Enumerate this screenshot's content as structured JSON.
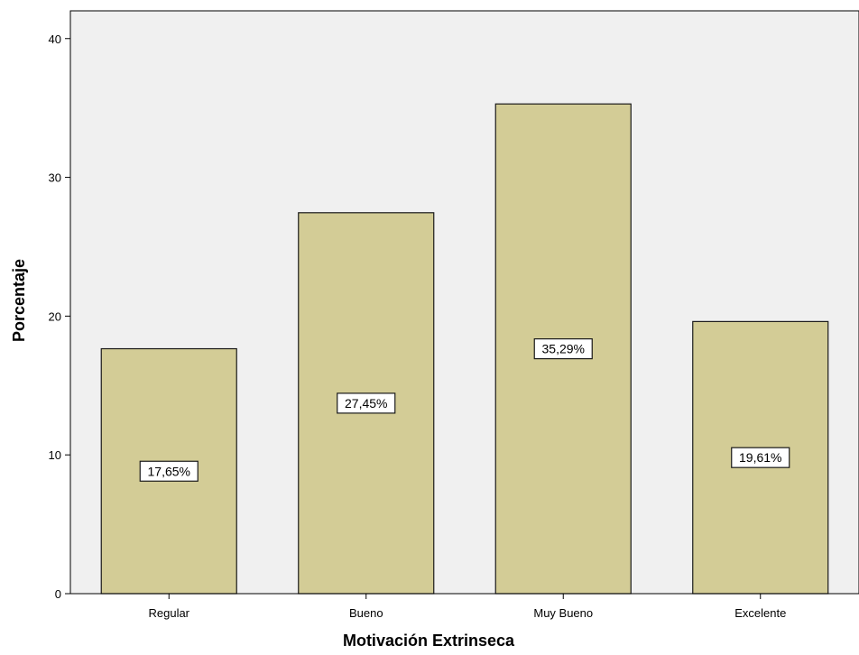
{
  "chart_data": {
    "type": "bar",
    "title": "",
    "xlabel": "Motivación Extrinseca",
    "ylabel": "Porcentaje",
    "categories": [
      "Regular",
      "Bueno",
      "Muy Bueno",
      "Excelente"
    ],
    "values": [
      17.65,
      27.45,
      35.29,
      19.61
    ],
    "data_labels": [
      "17,65%",
      "27,45%",
      "35,29%",
      "19,61%"
    ],
    "ylim": [
      0,
      42
    ],
    "yticks": [
      0,
      10,
      20,
      30,
      40
    ],
    "ytick_labels": [
      "0",
      "10",
      "20",
      "30",
      "40"
    ],
    "grid": false,
    "legend": "none",
    "colors": {
      "bar_fill": "#d3cc96",
      "bar_stroke": "#1a1a1a",
      "plot_background": "#f0f0f0",
      "label_box_fill": "#ffffff",
      "axis": "#000000"
    }
  }
}
